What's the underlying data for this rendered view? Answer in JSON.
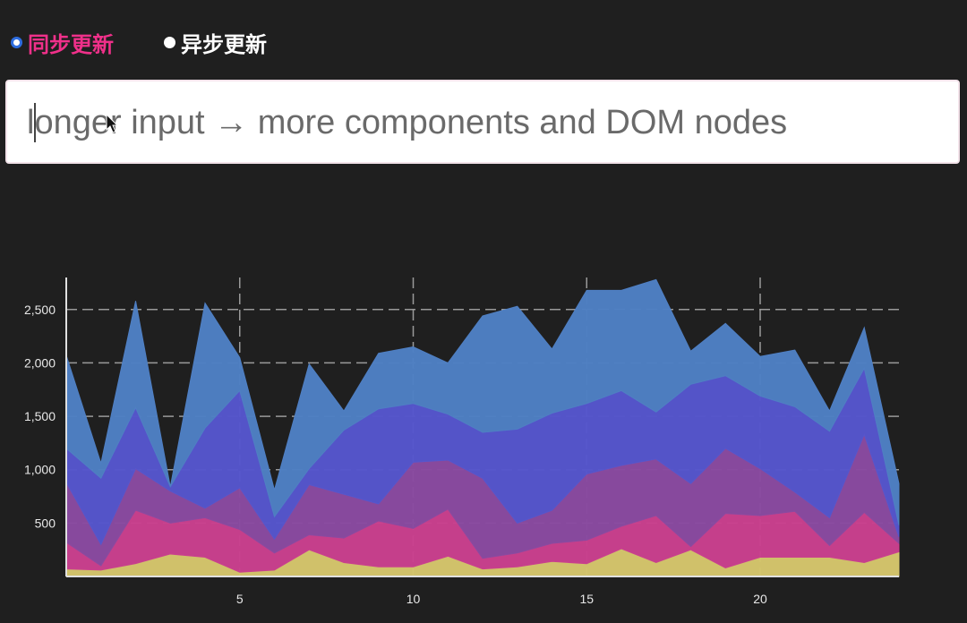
{
  "mode": {
    "options": [
      {
        "label": "同步更新",
        "selected": true
      },
      {
        "label": "异步更新",
        "selected": false
      }
    ]
  },
  "input": {
    "value": "longer input → more components and DOM nodes"
  },
  "colors": {
    "background": "#1f1f1f",
    "active_label": "#f0308a",
    "radio_selected": "#2d6cdf"
  },
  "chart_data": {
    "type": "area",
    "stacked": true,
    "x": [
      0,
      1,
      2,
      3,
      4,
      5,
      6,
      7,
      8,
      9,
      10,
      11,
      12,
      13,
      14,
      15,
      16,
      17,
      18,
      19,
      20,
      21,
      22,
      23,
      24
    ],
    "xlim": [
      0,
      24
    ],
    "ylim": [
      0,
      2800
    ],
    "x_ticks": [
      5,
      10,
      15,
      20
    ],
    "y_ticks": [
      500,
      1000,
      1500,
      2000,
      2500
    ],
    "x_tick_labels": [
      "5",
      "10",
      "15",
      "20"
    ],
    "y_tick_labels": [
      "500",
      "1,000",
      "1,500",
      "2,000",
      "2,500"
    ],
    "grid": "major, dashed",
    "legend": "none",
    "series": [
      {
        "color": "#d4c56c",
        "values": [
          70,
          60,
          120,
          210,
          180,
          40,
          60,
          250,
          130,
          90,
          90,
          190,
          70,
          90,
          140,
          120,
          260,
          130,
          250,
          80,
          180,
          180,
          180,
          130,
          230
        ]
      },
      {
        "color": "#c9408e",
        "values": [
          250,
          40,
          500,
          290,
          370,
          400,
          160,
          140,
          230,
          430,
          360,
          440,
          100,
          130,
          170,
          220,
          210,
          440,
          30,
          510,
          390,
          430,
          110,
          470,
          80
        ]
      },
      {
        "color": "#8a4aa0",
        "values": [
          560,
          200,
          390,
          300,
          90,
          390,
          130,
          470,
          410,
          160,
          620,
          460,
          750,
          280,
          310,
          620,
          570,
          530,
          590,
          610,
          440,
          180,
          260,
          730,
          60
        ]
      },
      {
        "color": "#5656cc",
        "values": [
          320,
          620,
          570,
          40,
          750,
          910,
          210,
          150,
          600,
          890,
          550,
          430,
          430,
          880,
          910,
          660,
          700,
          440,
          930,
          680,
          680,
          800,
          810,
          620,
          110
        ]
      },
      {
        "color": "#4f7fc3",
        "values": [
          870,
          140,
          1000,
          0,
          1170,
          310,
          250,
          980,
          180,
          520,
          530,
          480,
          1090,
          1150,
          600,
          1060,
          940,
          1240,
          310,
          490,
          370,
          530,
          190,
          380,
          390
        ]
      }
    ]
  }
}
